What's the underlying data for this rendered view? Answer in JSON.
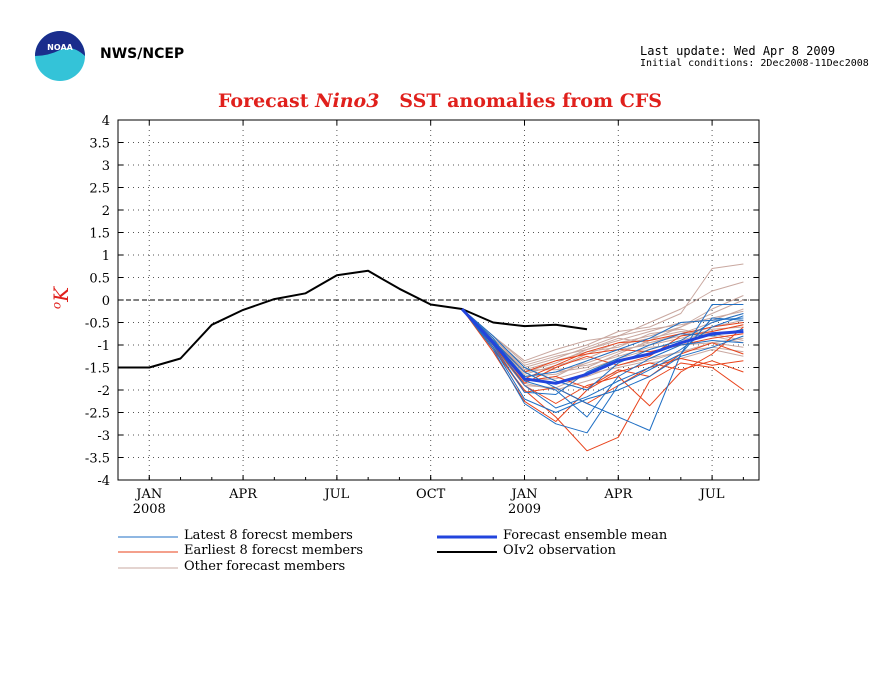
{
  "header": {
    "org": "NWS/NCEP",
    "last_update": "Last update: Wed Apr 8 2009",
    "initial_conditions": "Initial conditions: 2Dec2008-11Dec2008",
    "logo_text": "NOAA"
  },
  "title_parts": [
    "Forecast ",
    "Nino3",
    "   SST anomalies from CFS"
  ],
  "ylabel_unit": "o",
  "ylabel_letter": "K",
  "colors": {
    "latest": "#1f6fc4",
    "earliest": "#e8421a",
    "other": "#c9a8a0",
    "mean": "#2244dd",
    "obs": "#000000",
    "title": "#e0201c"
  },
  "legend": {
    "latest": "Latest 8 forecst members",
    "earliest": "Earliest 8 forecst members",
    "other": "Other forecast members",
    "mean": "Forecast ensemble mean",
    "obs": "OIv2 observation"
  },
  "chart_data": {
    "type": "line",
    "title": "Forecast Nino3 SST anomalies from CFS",
    "ylabel": "oK",
    "ylim": [
      -4,
      4
    ],
    "yticks": [
      "4",
      "3.5",
      "3",
      "2.5",
      "2",
      "1.5",
      "1",
      "0.5",
      "0",
      "-0.5",
      "-1",
      "-1.5",
      "-2",
      "-2.5",
      "-3",
      "-3.5",
      "-4"
    ],
    "x_months_from_jan2008": [
      -1,
      19.5
    ],
    "xticks": [
      {
        "m": 0,
        "label": "JAN",
        "year": "2008"
      },
      {
        "m": 3,
        "label": "APR",
        "year": ""
      },
      {
        "m": 6,
        "label": "JUL",
        "year": ""
      },
      {
        "m": 9,
        "label": "OCT",
        "year": ""
      },
      {
        "m": 12,
        "label": "JAN",
        "year": "2009"
      },
      {
        "m": 15,
        "label": "APR",
        "year": ""
      },
      {
        "m": 18,
        "label": "JUL",
        "year": ""
      }
    ],
    "grid": true,
    "zero_line": true,
    "observation": {
      "m": [
        -1,
        0,
        1,
        2,
        3,
        4,
        5,
        6,
        7,
        8,
        9,
        10,
        11,
        12,
        13,
        14
      ],
      "y": [
        -1.5,
        -1.5,
        -1.3,
        -0.55,
        -0.22,
        0.02,
        0.15,
        0.55,
        0.65,
        0.25,
        -0.1,
        -0.2,
        -0.5,
        -0.58,
        -0.55,
        -0.65
      ]
    },
    "forecast_x": [
      10,
      11,
      12,
      13,
      14,
      15,
      16,
      17,
      18,
      19
    ],
    "ensemble_mean": [
      -0.2,
      -0.95,
      -1.75,
      -1.85,
      -1.65,
      -1.35,
      -1.2,
      -0.95,
      -0.75,
      -0.7
    ],
    "latest_members": [
      [
        -0.2,
        -1.1,
        -2.3,
        -2.75,
        -2.95,
        -1.9,
        -1.55,
        -1.2,
        -0.4,
        -0.45
      ],
      [
        -0.2,
        -0.9,
        -1.6,
        -1.95,
        -2.3,
        -2.6,
        -2.9,
        -1.2,
        -0.1,
        -0.1
      ],
      [
        -0.2,
        -0.8,
        -1.5,
        -1.8,
        -2.0,
        -1.4,
        -1.1,
        -0.9,
        -0.5,
        -0.3
      ],
      [
        -0.2,
        -1.0,
        -2.05,
        -2.1,
        -1.6,
        -1.3,
        -1.0,
        -0.75,
        -0.8,
        -0.65
      ],
      [
        -0.2,
        -0.85,
        -1.8,
        -2.0,
        -2.6,
        -1.7,
        -1.3,
        -1.0,
        -0.9,
        -0.95
      ],
      [
        -0.2,
        -0.95,
        -1.9,
        -2.4,
        -2.15,
        -1.8,
        -1.5,
        -1.1,
        -0.6,
        -0.35
      ],
      [
        -0.2,
        -0.9,
        -1.7,
        -1.6,
        -1.35,
        -1.1,
        -0.85,
        -0.5,
        -0.45,
        -0.4
      ],
      [
        -0.2,
        -1.05,
        -2.2,
        -2.5,
        -2.2,
        -2.0,
        -1.7,
        -1.25,
        -1.05,
        -0.8
      ]
    ],
    "earliest_members": [
      [
        -0.2,
        -1.1,
        -2.0,
        -2.6,
        -3.35,
        -3.05,
        -1.8,
        -1.4,
        -1.5,
        -2.0
      ],
      [
        -0.2,
        -1.0,
        -1.9,
        -2.3,
        -1.9,
        -1.7,
        -2.35,
        -1.6,
        -1.2,
        -0.6
      ],
      [
        -0.2,
        -0.95,
        -1.75,
        -1.45,
        -1.15,
        -0.95,
        -0.9,
        -0.75,
        -0.6,
        -0.5
      ],
      [
        -0.2,
        -1.05,
        -2.05,
        -1.95,
        -2.3,
        -1.9,
        -1.5,
        -1.3,
        -1.45,
        -1.35
      ],
      [
        -0.2,
        -0.9,
        -1.6,
        -1.35,
        -1.2,
        -1.1,
        -1.15,
        -1.0,
        -0.85,
        -0.75
      ],
      [
        -0.2,
        -1.15,
        -2.25,
        -2.7,
        -2.0,
        -1.6,
        -1.4,
        -1.55,
        -1.35,
        -1.6
      ],
      [
        -0.2,
        -1.0,
        -1.85,
        -1.5,
        -1.25,
        -1.45,
        -1.25,
        -0.8,
        -0.7,
        -0.55
      ],
      [
        -0.2,
        -0.95,
        -1.8,
        -1.7,
        -1.95,
        -1.55,
        -1.7,
        -1.2,
        -0.95,
        -1.2
      ]
    ],
    "other_members": [
      [
        -0.2,
        -0.8,
        -1.4,
        -1.2,
        -1.0,
        -0.7,
        -0.6,
        -0.3,
        0.7,
        0.8
      ],
      [
        -0.2,
        -0.85,
        -1.5,
        -1.3,
        -1.05,
        -0.8,
        -0.5,
        -0.2,
        0.2,
        0.4
      ],
      [
        -0.2,
        -0.9,
        -1.6,
        -1.5,
        -1.2,
        -0.95,
        -0.8,
        -0.6,
        -0.2,
        0.1
      ],
      [
        -0.2,
        -0.95,
        -1.7,
        -1.65,
        -1.4,
        -1.15,
        -0.95,
        -0.75,
        -0.5,
        -0.3
      ],
      [
        -0.2,
        -1.0,
        -1.8,
        -1.75,
        -1.55,
        -1.3,
        -1.1,
        -0.9,
        -0.7,
        -0.55
      ],
      [
        -0.2,
        -0.9,
        -1.65,
        -1.45,
        -1.3,
        -1.0,
        -0.85,
        -0.7,
        -0.75,
        -0.9
      ],
      [
        -0.2,
        -0.85,
        -1.55,
        -1.55,
        -1.45,
        -1.25,
        -1.05,
        -1.0,
        -0.95,
        -1.05
      ],
      [
        -0.2,
        -0.95,
        -1.75,
        -1.85,
        -1.7,
        -1.45,
        -1.3,
        -1.15,
        -1.05,
        -1.15
      ],
      [
        -0.2,
        -1.0,
        -1.85,
        -2.0,
        -1.8,
        -1.6,
        -1.4,
        -1.3,
        -1.1,
        -1.25
      ],
      [
        -0.2,
        -0.9,
        -1.6,
        -1.4,
        -1.1,
        -0.9,
        -0.7,
        -0.5,
        -0.45,
        -0.2
      ],
      [
        -0.2,
        -0.85,
        -1.45,
        -1.25,
        -1.1,
        -0.85,
        -0.95,
        -0.8,
        -0.6,
        -0.45
      ],
      [
        -0.2,
        -0.95,
        -1.7,
        -1.6,
        -1.5,
        -1.2,
        -0.9,
        -0.6,
        -0.3,
        0.0
      ],
      [
        -0.2,
        -1.05,
        -1.9,
        -1.95,
        -1.65,
        -1.5,
        -1.35,
        -1.15,
        -0.95,
        -0.85
      ],
      [
        -0.2,
        -0.9,
        -1.55,
        -1.35,
        -1.15,
        -1.05,
        -0.75,
        -0.65,
        -0.8,
        -0.95
      ],
      [
        -0.2,
        -1.0,
        -1.8,
        -1.7,
        -1.35,
        -1.1,
        -1.0,
        -0.85,
        -0.65,
        -0.6
      ],
      [
        -0.2,
        -0.8,
        -1.35,
        -1.1,
        -0.9,
        -0.8,
        -0.65,
        -0.55,
        -0.4,
        -0.25
      ]
    ]
  }
}
